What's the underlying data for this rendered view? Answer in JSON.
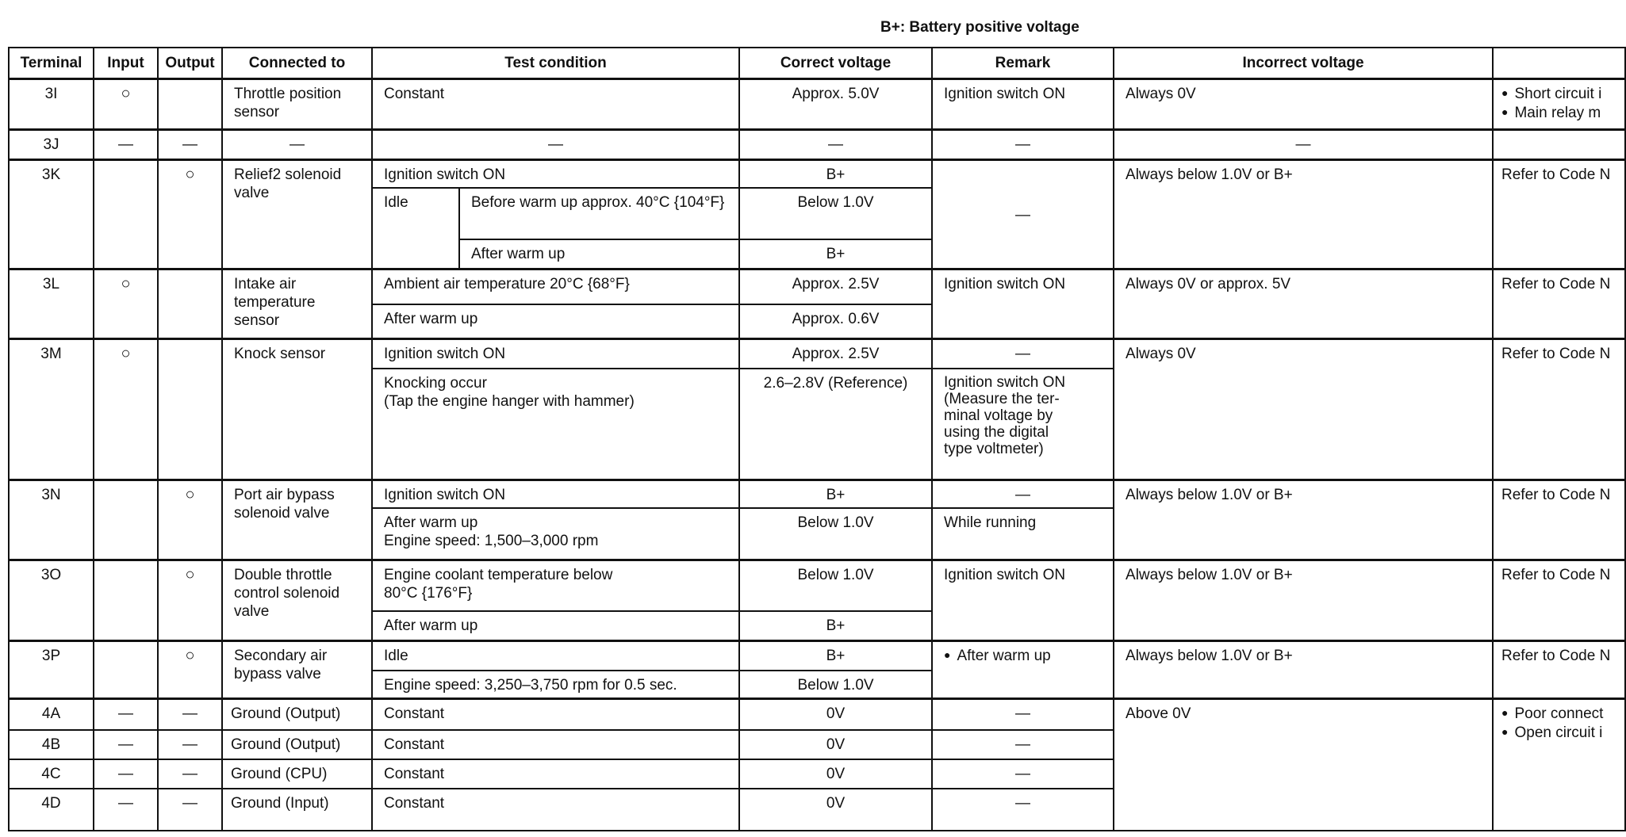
{
  "title": "B+: Battery positive voltage",
  "headers": [
    "Terminal",
    "Input",
    "Output",
    "Connected to",
    "Test condition",
    "Correct voltage",
    "Remark",
    "Incorrect voltage",
    ""
  ],
  "rows": [
    {
      "terminal": "3I",
      "input": "○",
      "output": "",
      "connected": "Throttle position sensor",
      "conditions": [
        {
          "test": "Constant",
          "correct": "Approx. 5.0V"
        }
      ],
      "remark": "Ignition switch ON",
      "incorrect": "Always 0V",
      "possible": [
        "Short circuit i",
        "Main relay m"
      ]
    },
    {
      "terminal": "3J",
      "input": "—",
      "output": "—",
      "connected": "—",
      "conditions": [
        {
          "test": "—",
          "correct": "—"
        }
      ],
      "remark": "—",
      "incorrect": "—",
      "possible": []
    },
    {
      "terminal": "3K",
      "input": "",
      "output": "○",
      "connected": "Relief2 solenoid valve",
      "conditions": [
        {
          "test": "Ignition switch ON",
          "correct": "B+"
        },
        {
          "group": "Idle",
          "test": "Before warm up approx. 40°C {104°F}",
          "correct": "Below 1.0V"
        },
        {
          "test": "After warm up",
          "correct": "B+"
        }
      ],
      "remark": "—",
      "incorrect": "Always below 1.0V or B+",
      "possible": [
        "Refer to Code N"
      ]
    },
    {
      "terminal": "3L",
      "input": "○",
      "output": "",
      "connected": "Intake air temperature sensor",
      "conditions": [
        {
          "test": "Ambient air temperature 20°C {68°F}",
          "correct": "Approx. 2.5V"
        },
        {
          "test": "After warm up",
          "correct": "Approx. 0.6V"
        }
      ],
      "remark": "Ignition switch ON",
      "incorrect": "Always 0V or approx. 5V",
      "possible": [
        "Refer to Code N"
      ]
    },
    {
      "terminal": "3M",
      "input": "○",
      "output": "",
      "connected": "Knock sensor",
      "conditions": [
        {
          "test": "Ignition switch ON",
          "correct": "Approx. 2.5V",
          "remark": "—"
        },
        {
          "test": "Knocking occur\n(Tap the engine hanger with hammer)",
          "correct": "2.6–2.8V (Reference)",
          "remark": "Ignition switch ON\n(Measure the ter-\nminal voltage by\nusing the digital\ntype voltmeter)"
        }
      ],
      "incorrect": "Always 0V",
      "possible": [
        "Refer to Code N"
      ]
    },
    {
      "terminal": "3N",
      "input": "",
      "output": "○",
      "connected": "Port air bypass solenoid valve",
      "conditions": [
        {
          "test": "Ignition switch ON",
          "correct": "B+",
          "remark": "—"
        },
        {
          "test": "After warm up\nEngine speed: 1,500–3,000 rpm",
          "correct": "Below 1.0V",
          "remark": "While running"
        }
      ],
      "incorrect": "Always below 1.0V or B+",
      "possible": [
        "Refer to Code N"
      ]
    },
    {
      "terminal": "3O",
      "input": "",
      "output": "○",
      "connected": "Double throttle control solenoid valve",
      "conditions": [
        {
          "test": "Engine coolant temperature below 80°C {176°F}",
          "correct": "Below 1.0V"
        },
        {
          "test": "After warm up",
          "correct": "B+"
        }
      ],
      "remark": "Ignition switch ON",
      "incorrect": "Always below 1.0V or B+",
      "possible": [
        "Refer to Code N"
      ]
    },
    {
      "terminal": "3P",
      "input": "",
      "output": "○",
      "connected": "Secondary air bypass valve",
      "conditions": [
        {
          "test": "Idle",
          "correct": "B+"
        },
        {
          "test": "Engine speed: 3,250–3,750 rpm for 0.5 sec.",
          "correct": "Below 1.0V"
        }
      ],
      "remark": "After warm up",
      "incorrect": "Always below 1.0V or B+",
      "possible": [
        "Refer to Code N"
      ]
    },
    {
      "terminal": "4A",
      "input": "—",
      "output": "—",
      "connected": "Ground (Output)",
      "conditions": [
        {
          "test": "Constant",
          "correct": "0V"
        }
      ],
      "remark": "—"
    },
    {
      "terminal": "4B",
      "input": "—",
      "output": "—",
      "connected": "Ground (Output)",
      "conditions": [
        {
          "test": "Constant",
          "correct": "0V"
        }
      ],
      "remark": "—"
    },
    {
      "terminal": "4C",
      "input": "—",
      "output": "—",
      "connected": "Ground (CPU)",
      "conditions": [
        {
          "test": "Constant",
          "correct": "0V"
        }
      ],
      "remark": "—"
    },
    {
      "terminal": "4D",
      "input": "—",
      "output": "—",
      "connected": "Ground (Input)",
      "conditions": [
        {
          "test": "Constant",
          "correct": "0V"
        }
      ],
      "remark": "—"
    }
  ],
  "ground_group": {
    "incorrect": "Above 0V",
    "possible": [
      "Poor connect",
      "Open circuit i"
    ]
  }
}
